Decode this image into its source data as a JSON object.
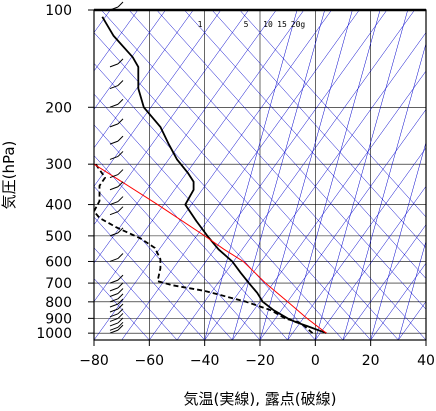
{
  "chart_data": {
    "type": "line",
    "title": "",
    "xlabel": "気温(実線), 露点(破線)",
    "ylabel": "気圧(hPa)",
    "xlim": [
      -80,
      40
    ],
    "ylim": [
      1050,
      100
    ],
    "y_scale": "log",
    "grid": true,
    "x_ticks": [
      -80,
      -60,
      -40,
      -20,
      0,
      20,
      40
    ],
    "x_tick_labels": [
      "−80",
      "−60",
      "−40",
      "−20",
      "0",
      "20",
      "40"
    ],
    "y_ticks": [
      100,
      200,
      300,
      400,
      500,
      600,
      700,
      800,
      900,
      1000
    ],
    "mixing_ratio_labels": [
      "1",
      "5",
      "10",
      "15",
      "20g"
    ],
    "colors": {
      "temperature": "#000000",
      "dewpoint": "#000000",
      "parcel": "#ff0000",
      "isotherm": "#0000cc",
      "grid": "#000000"
    },
    "series": [
      {
        "style": "solid",
        "points": [
          [
            4,
            1000
          ],
          [
            -3,
            950
          ],
          [
            -7,
            925
          ],
          [
            -10,
            900
          ],
          [
            -15,
            850
          ],
          [
            -19,
            800
          ],
          [
            -21,
            750
          ],
          [
            -24,
            700
          ],
          [
            -27,
            650
          ],
          [
            -30,
            600
          ],
          [
            -35,
            550
          ],
          [
            -39,
            500
          ],
          [
            -43,
            450
          ],
          [
            -47,
            400
          ],
          [
            -44,
            360
          ],
          [
            -44,
            340
          ],
          [
            -46,
            320
          ],
          [
            -50,
            290
          ],
          [
            -53,
            260
          ],
          [
            -56,
            230
          ],
          [
            -62,
            200
          ],
          [
            -64,
            175
          ],
          [
            -64,
            150
          ],
          [
            -66,
            140
          ],
          [
            -73,
            120
          ],
          [
            -77,
            105
          ]
        ]
      },
      {
        "style": "dashed",
        "points": [
          [
            -1,
            1000
          ],
          [
            -4,
            950
          ],
          [
            -6,
            925
          ],
          [
            -11,
            900
          ],
          [
            -16,
            850
          ],
          [
            -25,
            800
          ],
          [
            -40,
            740
          ],
          [
            -52,
            710
          ],
          [
            -57,
            690
          ],
          [
            -56,
            630
          ],
          [
            -56,
            590
          ],
          [
            -58,
            545
          ],
          [
            -63,
            510
          ],
          [
            -72,
            470
          ],
          [
            -78,
            440
          ],
          [
            -80,
            420
          ],
          [
            -78,
            390
          ],
          [
            -78,
            350
          ],
          [
            -76,
            330
          ],
          [
            -80,
            295
          ]
        ]
      },
      {
        "style": "solid",
        "points": [
          [
            4,
            1000
          ],
          [
            -3,
            900
          ],
          [
            -10,
            800
          ],
          [
            -18,
            700
          ],
          [
            -26,
            600
          ],
          [
            -33,
            550
          ],
          [
            -40,
            500
          ],
          [
            -57,
            400
          ],
          [
            -70,
            340
          ],
          [
            -80,
            300
          ],
          [
            -86,
            255
          ]
        ]
      }
    ]
  }
}
